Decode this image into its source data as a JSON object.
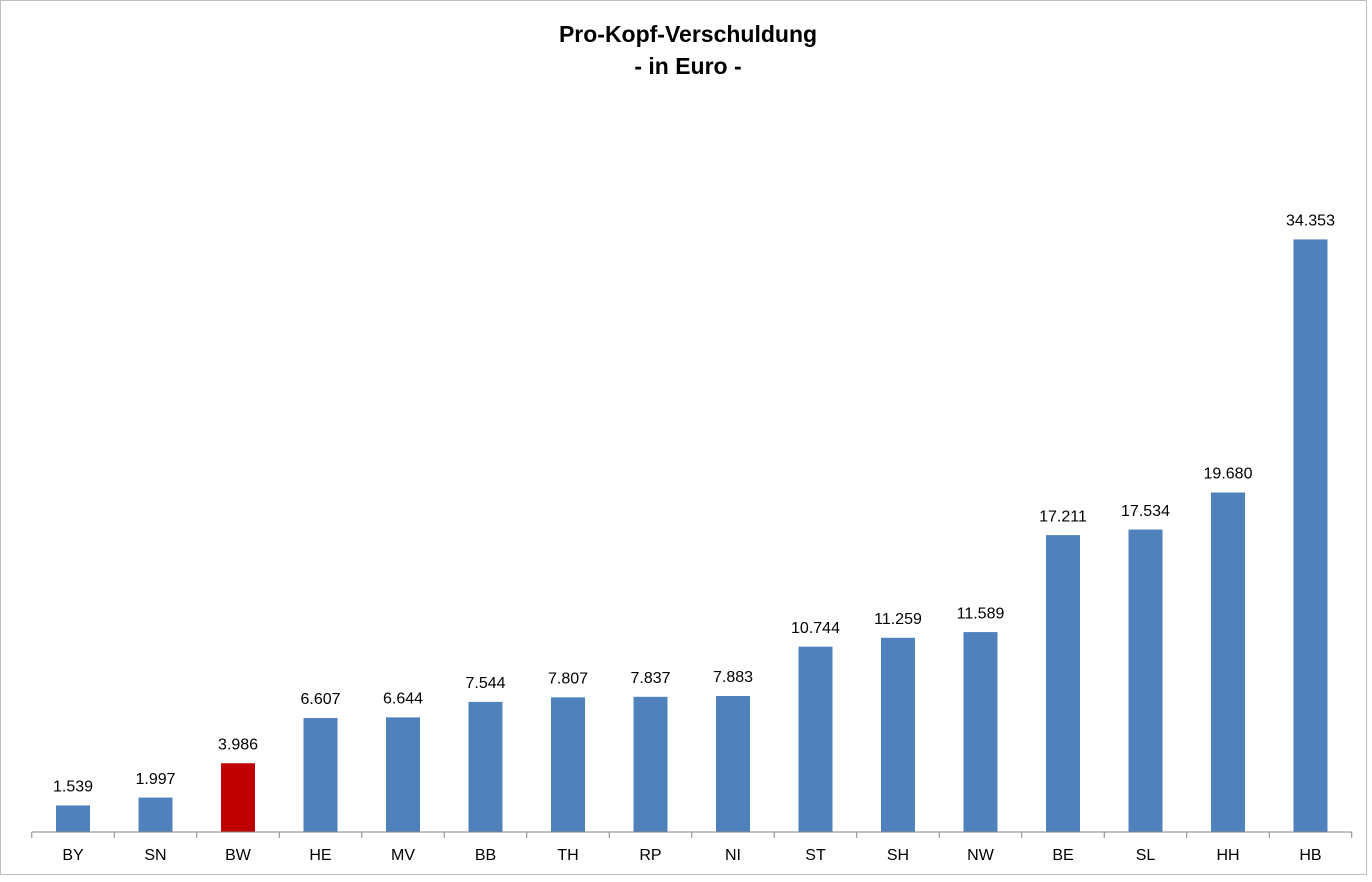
{
  "chart_data": {
    "type": "bar",
    "title": "Pro-Kopf-Verschuldung",
    "subtitle": "- in Euro -",
    "categories": [
      "BY",
      "SN",
      "BW",
      "HE",
      "MV",
      "BB",
      "TH",
      "RP",
      "NI",
      "ST",
      "SH",
      "NW",
      "BE",
      "SL",
      "HH",
      "HB"
    ],
    "values": [
      1539,
      1997,
      3986,
      6607,
      6644,
      7544,
      7807,
      7837,
      7883,
      10744,
      11259,
      11589,
      17211,
      17534,
      19680,
      34353
    ],
    "value_labels": [
      "1.539",
      "1.997",
      "3.986",
      "6.607",
      "6.644",
      "7.544",
      "7.807",
      "7.837",
      "7.883",
      "10.744",
      "11.259",
      "11.589",
      "17.211",
      "17.534",
      "19.680",
      "34.353"
    ],
    "colors": [
      "#4f81bd",
      "#4f81bd",
      "#c00000",
      "#4f81bd",
      "#4f81bd",
      "#4f81bd",
      "#4f81bd",
      "#4f81bd",
      "#4f81bd",
      "#4f81bd",
      "#4f81bd",
      "#4f81bd",
      "#4f81bd",
      "#4f81bd",
      "#4f81bd",
      "#4f81bd"
    ],
    "ylim": [
      0,
      40000
    ]
  }
}
